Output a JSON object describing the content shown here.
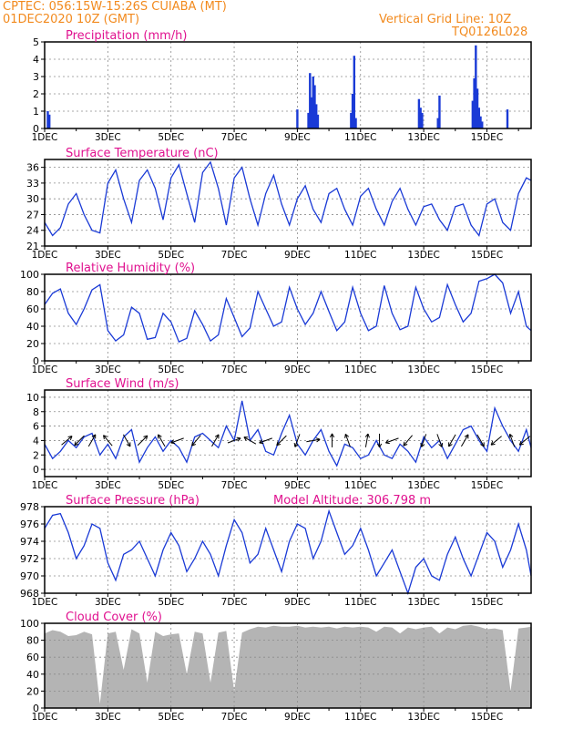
{
  "header": {
    "line1": "CPTEC:   056:15W-15:26S   CUIABA (MT)",
    "line2": "01DEC2020  10Z (GMT)",
    "grid_note": "Vertical Grid Line: 10Z",
    "code": "TQ0126L028"
  },
  "colors": {
    "header": "#f28a1e",
    "title": "#e0118f",
    "series": "#1a3ad6",
    "cloud": "#b4b4b4",
    "grid": "#8c8c8c",
    "arrow": "#000000"
  },
  "x_ticks": [
    "1DEC",
    "3DEC",
    "5DEC",
    "7DEC",
    "9DEC",
    "11DEC",
    "13DEC",
    "15DEC"
  ],
  "x_tick_days": [
    0,
    2,
    4,
    6,
    8,
    10,
    12,
    14
  ],
  "chart_data": [
    {
      "id": "precip",
      "type": "bar",
      "title": "Precipitation (mm/h)",
      "xlabel": "",
      "ylabel": "",
      "x_unit": "days since 01DEC2020 10Z",
      "xlim": [
        0,
        15.4
      ],
      "ylim": [
        0,
        5
      ],
      "yticks": [
        0,
        1,
        2,
        3,
        4,
        5
      ],
      "grid": true,
      "x": [
        0.1,
        0.15,
        8.0,
        8.35,
        8.4,
        8.45,
        8.5,
        8.55,
        8.6,
        8.65,
        9.7,
        9.75,
        9.8,
        9.85,
        11.85,
        11.9,
        11.95,
        12.45,
        12.5,
        13.55,
        13.6,
        13.65,
        13.7,
        13.75,
        13.8,
        13.85,
        14.65
      ],
      "values": [
        1.0,
        0.8,
        1.1,
        0.9,
        3.2,
        1.8,
        3.0,
        2.5,
        1.4,
        0.8,
        0.9,
        2.0,
        4.2,
        0.6,
        1.7,
        1.2,
        0.9,
        0.6,
        1.9,
        1.6,
        2.9,
        4.8,
        2.3,
        1.2,
        0.7,
        0.4,
        1.1
      ]
    },
    {
      "id": "temp",
      "type": "line",
      "title": "Surface Temperature (nC)",
      "xlabel": "",
      "ylabel": "",
      "x_unit": "days since 01DEC2020 10Z",
      "xlim": [
        0,
        15.4
      ],
      "ylim": [
        21,
        37.5
      ],
      "yticks": [
        21,
        24,
        27,
        30,
        33,
        36
      ],
      "grid": true,
      "x": [
        0,
        0.25,
        0.5,
        0.75,
        1.0,
        1.25,
        1.5,
        1.75,
        2.0,
        2.25,
        2.5,
        2.75,
        3.0,
        3.25,
        3.5,
        3.75,
        4.0,
        4.25,
        4.5,
        4.75,
        5.0,
        5.25,
        5.5,
        5.75,
        6.0,
        6.25,
        6.5,
        6.75,
        7.0,
        7.25,
        7.5,
        7.75,
        8.0,
        8.25,
        8.5,
        8.75,
        9.0,
        9.25,
        9.5,
        9.75,
        10.0,
        10.25,
        10.5,
        10.75,
        11.0,
        11.25,
        11.5,
        11.75,
        12.0,
        12.25,
        12.5,
        12.75,
        13.0,
        13.25,
        13.5,
        13.75,
        14.0,
        14.25,
        14.5,
        14.75,
        15.0,
        15.25,
        15.4
      ],
      "values": [
        25.5,
        23.0,
        24.5,
        29.0,
        31.0,
        27.0,
        24.0,
        23.5,
        33.0,
        35.5,
        30.0,
        25.5,
        33.5,
        35.5,
        32.0,
        26.0,
        34.0,
        36.5,
        31.0,
        25.5,
        35.0,
        37.0,
        32.0,
        25.0,
        34.0,
        36.0,
        30.0,
        25.0,
        31.0,
        34.5,
        29.0,
        25.0,
        30.0,
        32.5,
        28.0,
        25.5,
        31.0,
        32.0,
        28.0,
        25.0,
        30.5,
        32.0,
        28.0,
        25.0,
        29.5,
        32.0,
        28.0,
        25.0,
        28.5,
        29.0,
        26.0,
        24.0,
        28.5,
        29.0,
        25.0,
        23.0,
        29.0,
        30.0,
        25.5,
        24.0,
        31.0,
        34.0,
        33.5
      ]
    },
    {
      "id": "rh",
      "type": "line",
      "title": "Relative Humidity (%)",
      "xlabel": "",
      "ylabel": "",
      "x_unit": "days since 01DEC2020 10Z",
      "xlim": [
        0,
        15.4
      ],
      "ylim": [
        0,
        100
      ],
      "yticks": [
        0,
        20,
        40,
        60,
        80,
        100
      ],
      "grid": true,
      "x": [
        0,
        0.25,
        0.5,
        0.75,
        1.0,
        1.25,
        1.5,
        1.75,
        2.0,
        2.25,
        2.5,
        2.75,
        3.0,
        3.25,
        3.5,
        3.75,
        4.0,
        4.25,
        4.5,
        4.75,
        5.0,
        5.25,
        5.5,
        5.75,
        6.0,
        6.25,
        6.5,
        6.75,
        7.0,
        7.25,
        7.5,
        7.75,
        8.0,
        8.25,
        8.5,
        8.75,
        9.0,
        9.25,
        9.5,
        9.75,
        10.0,
        10.25,
        10.5,
        10.75,
        11.0,
        11.25,
        11.5,
        11.75,
        12.0,
        12.25,
        12.5,
        12.75,
        13.0,
        13.25,
        13.5,
        13.75,
        14.0,
        14.25,
        14.5,
        14.75,
        15.0,
        15.25,
        15.4
      ],
      "values": [
        65,
        78,
        83,
        55,
        42,
        60,
        82,
        88,
        35,
        23,
        30,
        62,
        55,
        25,
        27,
        55,
        45,
        22,
        26,
        58,
        42,
        23,
        30,
        72,
        50,
        28,
        38,
        80,
        60,
        40,
        45,
        85,
        60,
        42,
        55,
        80,
        57,
        35,
        45,
        85,
        55,
        35,
        40,
        87,
        55,
        36,
        40,
        85,
        60,
        45,
        50,
        88,
        65,
        45,
        55,
        92,
        95,
        100,
        90,
        55,
        80,
        40,
        35
      ]
    },
    {
      "id": "wind",
      "type": "line",
      "title": "Surface Wind (m/s)",
      "xlabel": "",
      "ylabel": "",
      "x_unit": "days since 01DEC2020 10Z",
      "xlim": [
        0,
        15.4
      ],
      "ylim": [
        -1,
        11
      ],
      "yticks": [
        0,
        2,
        4,
        6,
        8,
        10
      ],
      "grid": true,
      "x": [
        0,
        0.25,
        0.5,
        0.75,
        1.0,
        1.25,
        1.5,
        1.75,
        2.0,
        2.25,
        2.5,
        2.75,
        3.0,
        3.25,
        3.5,
        3.75,
        4.0,
        4.25,
        4.5,
        4.75,
        5.0,
        5.25,
        5.5,
        5.75,
        6.0,
        6.25,
        6.5,
        6.75,
        7.0,
        7.25,
        7.5,
        7.75,
        8.0,
        8.25,
        8.5,
        8.75,
        9.0,
        9.25,
        9.5,
        9.75,
        10.0,
        10.25,
        10.5,
        10.75,
        11.0,
        11.25,
        11.5,
        11.75,
        12.0,
        12.25,
        12.5,
        12.75,
        13.0,
        13.25,
        13.5,
        13.75,
        14.0,
        14.25,
        14.5,
        14.75,
        15.0,
        15.25,
        15.4
      ],
      "values": [
        3.5,
        1.5,
        2.5,
        4.0,
        3.0,
        4.5,
        5.0,
        2.0,
        3.5,
        1.5,
        4.5,
        5.5,
        1.0,
        3.0,
        4.5,
        2.5,
        4.0,
        3.0,
        1.0,
        4.5,
        5.0,
        4.0,
        3.0,
        6.0,
        4.0,
        9.5,
        4.0,
        5.5,
        2.5,
        2.0,
        5.0,
        7.5,
        3.5,
        2.0,
        4.0,
        5.5,
        2.5,
        0.5,
        3.5,
        3.0,
        1.5,
        2.0,
        4.0,
        2.0,
        1.5,
        3.5,
        2.5,
        1.0,
        4.5,
        3.0,
        4.0,
        1.5,
        3.5,
        5.5,
        6.0,
        4.0,
        2.5,
        8.5,
        6.0,
        4.0,
        2.5,
        5.5,
        3.0
      ],
      "arrow_x": [
        0.7,
        1.1,
        1.5,
        2.0,
        2.6,
        3.1,
        3.7,
        4.2,
        4.8,
        5.4,
        6.0,
        6.5,
        7.0,
        7.5,
        8.0,
        8.5,
        9.1,
        9.6,
        10.2,
        10.6,
        11.0,
        11.5,
        12.0,
        12.5,
        12.9,
        13.3,
        13.8,
        14.3,
        14.8,
        15.2
      ],
      "arrow_angle_deg": [
        40,
        225,
        60,
        130,
        300,
        45,
        120,
        200,
        230,
        60,
        20,
        150,
        200,
        225,
        250,
        10,
        90,
        110,
        80,
        270,
        200,
        230,
        250,
        290,
        240,
        60,
        300,
        220,
        110,
        220
      ]
    },
    {
      "id": "pressure",
      "type": "line",
      "title": "Surface Pressure (hPa)",
      "subtitle": "Model Altitude: 306.798 m",
      "xlabel": "",
      "ylabel": "",
      "x_unit": "days since 01DEC2020 10Z",
      "xlim": [
        0,
        15.4
      ],
      "ylim": [
        968,
        978
      ],
      "yticks": [
        968,
        970,
        972,
        974,
        976,
        978
      ],
      "grid": true,
      "x": [
        0,
        0.25,
        0.5,
        0.75,
        1.0,
        1.25,
        1.5,
        1.75,
        2.0,
        2.25,
        2.5,
        2.75,
        3.0,
        3.25,
        3.5,
        3.75,
        4.0,
        4.25,
        4.5,
        4.75,
        5.0,
        5.25,
        5.5,
        5.75,
        6.0,
        6.25,
        6.5,
        6.75,
        7.0,
        7.25,
        7.5,
        7.75,
        8.0,
        8.25,
        8.5,
        8.75,
        9.0,
        9.25,
        9.5,
        9.75,
        10.0,
        10.25,
        10.5,
        10.75,
        11.0,
        11.25,
        11.5,
        11.75,
        12.0,
        12.25,
        12.5,
        12.75,
        13.0,
        13.25,
        13.5,
        13.75,
        14.0,
        14.25,
        14.5,
        14.75,
        15.0,
        15.25,
        15.4
      ],
      "values": [
        975.5,
        977.0,
        977.2,
        975.0,
        972.0,
        973.5,
        976.0,
        975.5,
        971.5,
        969.5,
        972.5,
        973.0,
        974.0,
        972.0,
        970.0,
        973.0,
        975.0,
        973.5,
        970.5,
        972.0,
        974.0,
        972.5,
        970.0,
        973.5,
        976.5,
        975.0,
        971.5,
        972.5,
        975.5,
        973.0,
        970.5,
        974.0,
        976.0,
        975.5,
        972.0,
        974.0,
        977.5,
        975.0,
        972.5,
        973.5,
        975.5,
        973.0,
        970.0,
        971.5,
        973.0,
        970.5,
        968.0,
        971.0,
        972.0,
        970.0,
        969.5,
        972.5,
        974.5,
        972.0,
        970.0,
        972.5,
        975.0,
        974.0,
        971.0,
        973.0,
        976.0,
        973.0,
        970.0
      ]
    },
    {
      "id": "cloud",
      "type": "area",
      "title": "Cloud Cover (%)",
      "xlabel": "",
      "ylabel": "",
      "x_unit": "days since 01DEC2020 10Z",
      "xlim": [
        0,
        15.4
      ],
      "ylim": [
        0,
        100
      ],
      "yticks": [
        0,
        20,
        40,
        60,
        80,
        100
      ],
      "grid": true,
      "x": [
        0,
        0.25,
        0.5,
        0.75,
        1.0,
        1.25,
        1.5,
        1.75,
        2.0,
        2.25,
        2.5,
        2.75,
        3.0,
        3.25,
        3.5,
        3.75,
        4.0,
        4.25,
        4.5,
        4.75,
        5.0,
        5.25,
        5.5,
        5.75,
        6.0,
        6.25,
        6.5,
        6.75,
        7.0,
        7.25,
        7.5,
        7.75,
        8.0,
        8.25,
        8.5,
        8.75,
        9.0,
        9.25,
        9.5,
        9.75,
        10.0,
        10.25,
        10.5,
        10.75,
        11.0,
        11.25,
        11.5,
        11.75,
        12.0,
        12.25,
        12.5,
        12.75,
        13.0,
        13.25,
        13.5,
        13.75,
        14.0,
        14.25,
        14.5,
        14.75,
        15.0,
        15.25,
        15.4
      ],
      "values": [
        88,
        92,
        90,
        85,
        86,
        90,
        87,
        5,
        88,
        90,
        45,
        93,
        88,
        30,
        90,
        85,
        87,
        88,
        40,
        90,
        88,
        30,
        89,
        91,
        20,
        89,
        93,
        96,
        95,
        97,
        96,
        96,
        97,
        95,
        96,
        95,
        96,
        94,
        96,
        95,
        96,
        95,
        90,
        96,
        95,
        88,
        95,
        93,
        95,
        96,
        88,
        95,
        93,
        97,
        98,
        96,
        93,
        94,
        92,
        20,
        94,
        95,
        96
      ]
    }
  ]
}
